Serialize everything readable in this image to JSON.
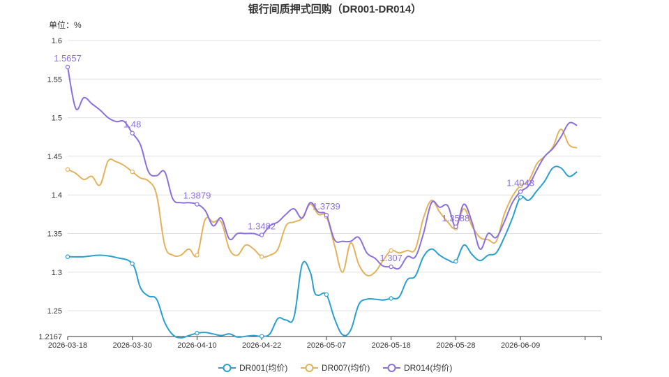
{
  "chart_data": {
    "type": "line",
    "title": "银行间质押式回购（DR001-DR014）",
    "unit_label": "单位：%",
    "ylim": [
      1.2167,
      1.6
    ],
    "y_ticks": [
      1.2167,
      1.25,
      1.3,
      1.35,
      1.4,
      1.45,
      1.5,
      1.55,
      1.6
    ],
    "x_tick_labels": [
      "2026-03-18",
      "2026-03-30",
      "2026-04-10",
      "2026-04-22",
      "2026-05-07",
      "2026-05-18",
      "2026-05-28",
      "2026-06-09"
    ],
    "x_range": [
      0,
      66
    ],
    "x_ticks_index": [
      0,
      8,
      16,
      24,
      32,
      40,
      48,
      56
    ],
    "grid": true,
    "legend_position": "bottom",
    "series": [
      {
        "name": "DR001(均价)",
        "color": "#2a9fcf",
        "x": [
          0,
          2,
          4,
          6,
          8,
          9,
          10,
          11,
          12,
          13,
          14,
          15,
          16,
          17,
          18,
          19,
          20,
          21,
          22,
          23,
          24,
          25,
          26,
          27,
          28,
          29,
          30,
          30.5,
          31,
          32,
          33,
          34,
          35,
          36,
          37,
          38,
          39,
          40,
          41,
          42,
          43,
          44,
          45,
          46,
          47,
          48,
          49,
          50,
          51,
          52,
          53,
          54,
          55,
          56,
          57,
          58,
          59,
          60,
          61,
          62,
          63
        ],
        "values": [
          1.32,
          1.32,
          1.322,
          1.319,
          1.311,
          1.28,
          1.269,
          1.265,
          1.235,
          1.219,
          1.215,
          1.218,
          1.221,
          1.222,
          1.22,
          1.218,
          1.22,
          1.216,
          1.217,
          1.218,
          1.217,
          1.22,
          1.24,
          1.238,
          1.242,
          1.31,
          1.3,
          1.275,
          1.27,
          1.271,
          1.24,
          1.219,
          1.225,
          1.258,
          1.265,
          1.265,
          1.264,
          1.266,
          1.268,
          1.29,
          1.295,
          1.32,
          1.33,
          1.322,
          1.316,
          1.314,
          1.335,
          1.323,
          1.315,
          1.322,
          1.325,
          1.345,
          1.37,
          1.397,
          1.393,
          1.405,
          1.418,
          1.435,
          1.435,
          1.424,
          1.43
        ],
        "markers": [
          0,
          8,
          16,
          24,
          32,
          40,
          48,
          56
        ]
      },
      {
        "name": "DR007(均价)",
        "color": "#e3b25a",
        "x": [
          0,
          1,
          2,
          3,
          4,
          5,
          6,
          7,
          8,
          9,
          10,
          11,
          12,
          13,
          14,
          15,
          16,
          17,
          18,
          19,
          20,
          21,
          22,
          23,
          24,
          25,
          26,
          27,
          28,
          29,
          30,
          31,
          32,
          33,
          34,
          35,
          36,
          37,
          38,
          39,
          40,
          41,
          42,
          43,
          44,
          45,
          46,
          47,
          48,
          49,
          50,
          51,
          52,
          53,
          54,
          55,
          56,
          57,
          58,
          59,
          60,
          61,
          62,
          63
        ],
        "values": [
          1.433,
          1.428,
          1.42,
          1.424,
          1.413,
          1.444,
          1.443,
          1.438,
          1.43,
          1.422,
          1.418,
          1.4,
          1.335,
          1.322,
          1.322,
          1.33,
          1.322,
          1.368,
          1.365,
          1.365,
          1.33,
          1.322,
          1.335,
          1.33,
          1.32,
          1.322,
          1.33,
          1.36,
          1.365,
          1.37,
          1.388,
          1.375,
          1.372,
          1.335,
          1.3,
          1.338,
          1.31,
          1.296,
          1.3,
          1.315,
          1.328,
          1.325,
          1.328,
          1.33,
          1.37,
          1.393,
          1.378,
          1.365,
          1.357,
          1.382,
          1.36,
          1.345,
          1.342,
          1.34,
          1.375,
          1.398,
          1.412,
          1.418,
          1.44,
          1.45,
          1.462,
          1.485,
          1.465,
          1.461
        ],
        "markers": [
          0,
          8,
          16,
          24,
          32,
          40,
          48,
          56
        ]
      },
      {
        "name": "DR014(均价)",
        "color": "#8a6fe0",
        "x": [
          0,
          1,
          2,
          3,
          4,
          5,
          6,
          7,
          8,
          9,
          10,
          11,
          12,
          13,
          14,
          15,
          16,
          17,
          18,
          19,
          20,
          21,
          22,
          23,
          24,
          25,
          26,
          27,
          28,
          29,
          30,
          31,
          32,
          33,
          34,
          35,
          36,
          37,
          38,
          39,
          40,
          41,
          42,
          43,
          44,
          45,
          46,
          47,
          48,
          49,
          50,
          51,
          52,
          53,
          54,
          55,
          56,
          57,
          58,
          59,
          60,
          61,
          62,
          63
        ],
        "values": [
          1.5657,
          1.512,
          1.526,
          1.518,
          1.51,
          1.5,
          1.495,
          1.495,
          1.48,
          1.465,
          1.43,
          1.425,
          1.43,
          1.395,
          1.39,
          1.39,
          1.3879,
          1.38,
          1.36,
          1.37,
          1.343,
          1.35,
          1.35,
          1.35,
          1.3482,
          1.36,
          1.365,
          1.375,
          1.382,
          1.37,
          1.39,
          1.378,
          1.3739,
          1.342,
          1.34,
          1.34,
          1.345,
          1.325,
          1.318,
          1.308,
          1.307,
          1.305,
          1.32,
          1.32,
          1.35,
          1.39,
          1.384,
          1.386,
          1.3588,
          1.388,
          1.365,
          1.33,
          1.35,
          1.345,
          1.365,
          1.39,
          1.4043,
          1.412,
          1.432,
          1.45,
          1.46,
          1.475,
          1.493,
          1.49
        ],
        "markers": [
          0,
          8,
          16,
          24,
          32,
          40,
          48,
          56
        ],
        "labels": [
          {
            "index": 0,
            "text": "1.5657"
          },
          {
            "index": 8,
            "text": "1.48"
          },
          {
            "index": 16,
            "text": "1.3879"
          },
          {
            "index": 24,
            "text": "1.3482"
          },
          {
            "index": 32,
            "text": "1.3739"
          },
          {
            "index": 40,
            "text": "1.307"
          },
          {
            "index": 48,
            "text": "1.3588"
          },
          {
            "index": 56,
            "text": "1.4043"
          }
        ]
      }
    ]
  }
}
